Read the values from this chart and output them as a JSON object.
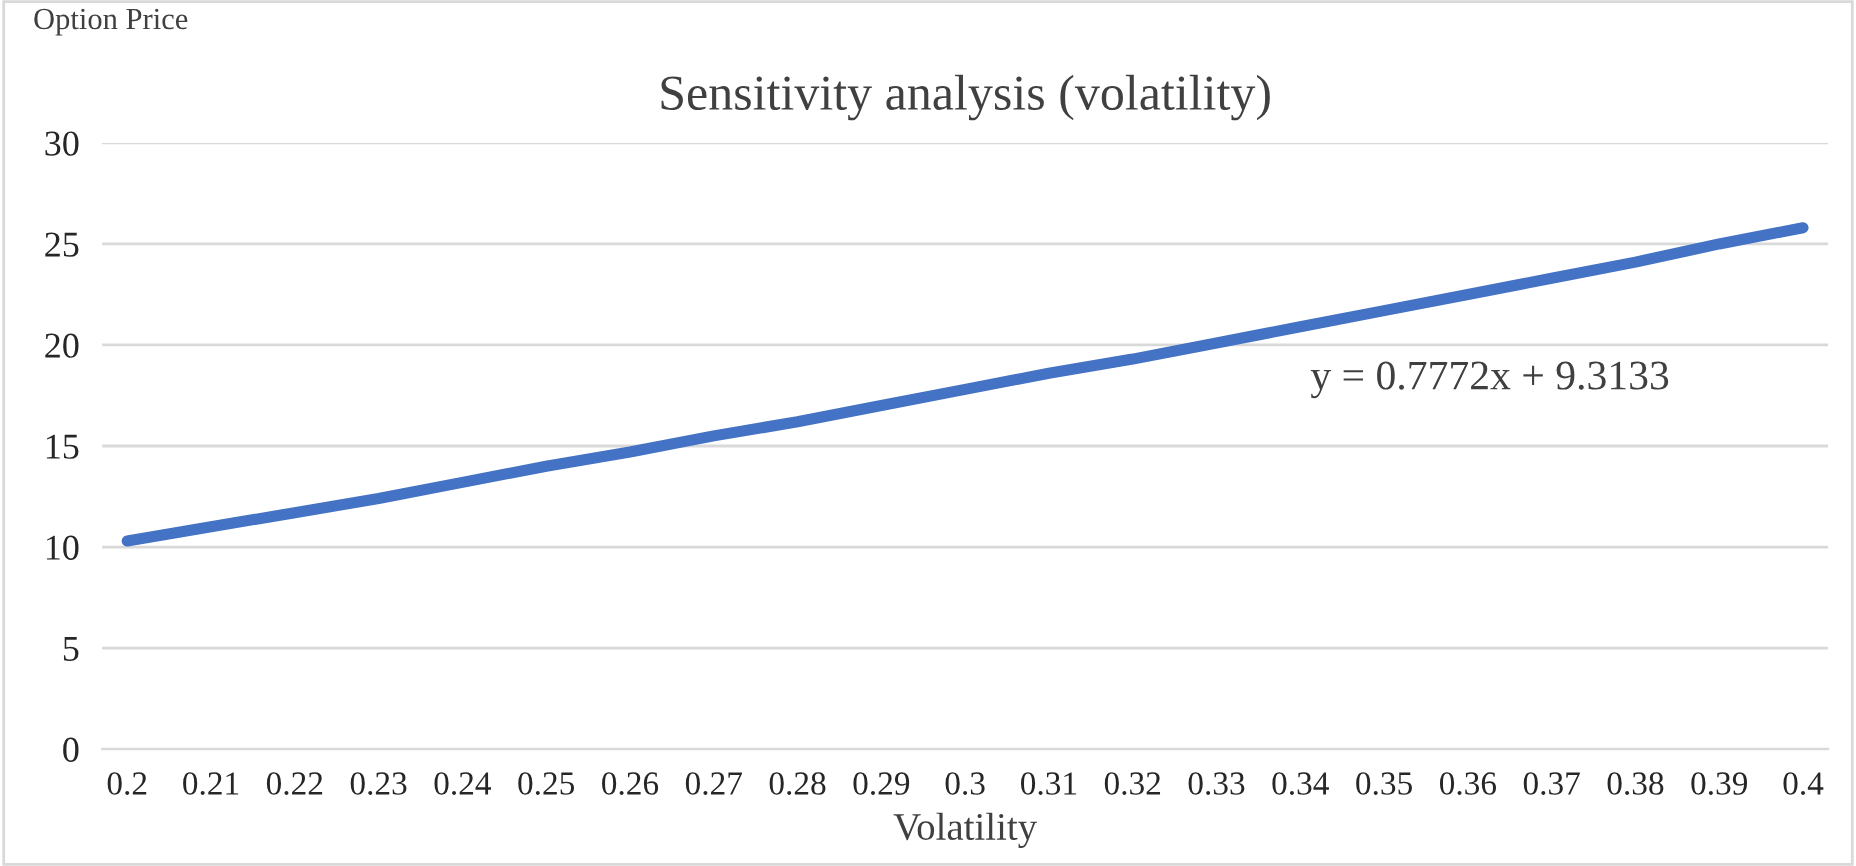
{
  "chart_data": {
    "type": "line",
    "title": "Sensitivity analysis (volatility)",
    "xlabel": "Volatility",
    "ylabel": "Option Price",
    "categories": [
      "0.2",
      "0.21",
      "0.22",
      "0.23",
      "0.24",
      "0.25",
      "0.26",
      "0.27",
      "0.28",
      "0.29",
      "0.3",
      "0.31",
      "0.32",
      "0.33",
      "0.34",
      "0.35",
      "0.36",
      "0.37",
      "0.38",
      "0.39",
      "0.4"
    ],
    "series": [
      {
        "color": "#4472c4",
        "values": [
          10.3,
          11.0,
          11.7,
          12.4,
          13.2,
          14.0,
          14.7,
          15.5,
          16.2,
          17.0,
          17.8,
          18.6,
          19.3,
          20.1,
          20.9,
          21.7,
          22.5,
          23.3,
          24.1,
          25.0,
          25.8
        ]
      }
    ],
    "ylim": [
      0,
      30
    ],
    "yticks": [
      0,
      5,
      10,
      15,
      20,
      25,
      30
    ],
    "grid": "y",
    "legend": false,
    "marker": "none",
    "line_style": "solid",
    "annotations": [
      "y = 0.7772x + 9.3133"
    ]
  }
}
